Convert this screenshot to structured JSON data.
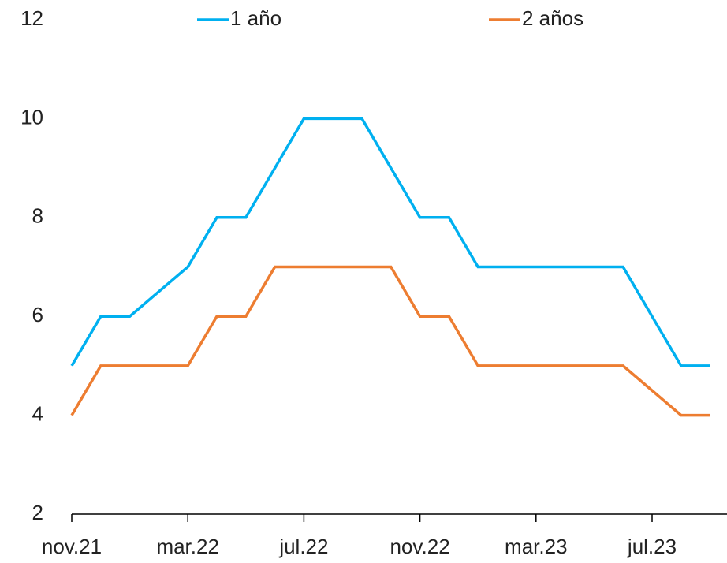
{
  "chart_data": {
    "type": "line",
    "categories": [
      "nov.21",
      null,
      null,
      null,
      "mar.22",
      null,
      null,
      null,
      "jul.22",
      null,
      null,
      null,
      "nov.22",
      null,
      null,
      null,
      "mar.23",
      null,
      null,
      null,
      "jul.23",
      null,
      null
    ],
    "series": [
      {
        "name": "1 año",
        "color": "#00b0f0",
        "values": [
          5,
          6,
          6,
          6.5,
          7,
          8,
          8,
          9,
          10,
          10,
          10,
          9,
          8,
          8,
          7,
          7,
          7,
          7,
          7,
          7,
          6,
          5,
          5
        ]
      },
      {
        "name": "2 años",
        "color": "#ed7d31",
        "values": [
          4,
          5,
          5,
          5,
          5,
          6,
          6,
          7,
          7,
          7,
          7,
          7,
          6,
          6,
          5,
          5,
          5,
          5,
          5,
          5,
          4.5,
          4,
          4
        ]
      }
    ],
    "ylim": [
      2,
      12
    ],
    "yticks": [
      2,
      4,
      6,
      8,
      10,
      12
    ],
    "grid": false,
    "legend": "top"
  }
}
